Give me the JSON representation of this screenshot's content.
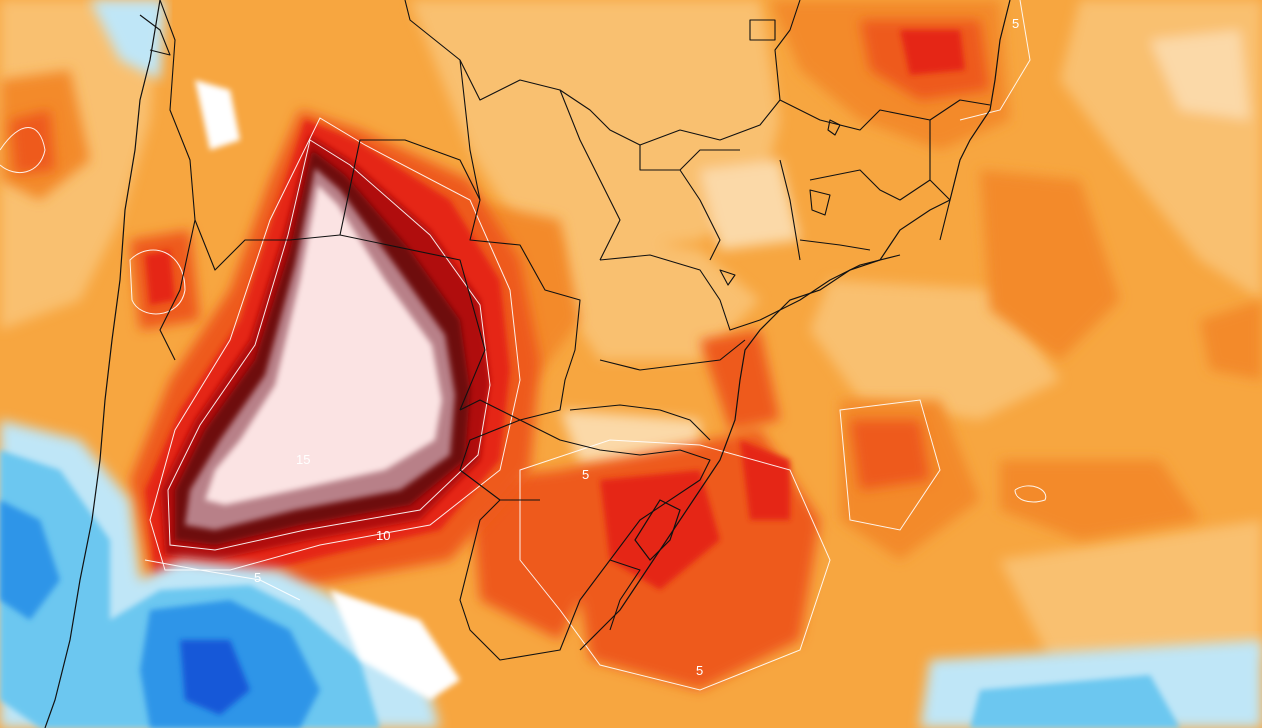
{
  "map": {
    "contour_labels": [
      {
        "id": "label-15",
        "text": "15"
      },
      {
        "id": "label-10",
        "text": "10"
      },
      {
        "id": "label-5-southwest",
        "text": "5"
      },
      {
        "id": "label-5-south-brazil",
        "text": "5"
      },
      {
        "id": "label-5-atlantic-south",
        "text": "5"
      },
      {
        "id": "label-5-northeast",
        "text": "5"
      }
    ],
    "colors": {
      "pale_peach": "#fbd9a8",
      "light_orange": "#f9c070",
      "orange": "#f7a640",
      "dark_orange": "#f38a2a",
      "red_orange": "#ee5a1c",
      "red": "#e52814",
      "dark_red": "#b0100c",
      "maroon": "#6e0a10",
      "mauve": "#b88088",
      "pale_pink": "#fbe3e3",
      "white": "#ffffff",
      "light_blue": "#bfe6f7",
      "sky_blue": "#6cc7f0",
      "blue": "#2d95e8",
      "dark_blue": "#1458d8"
    }
  }
}
